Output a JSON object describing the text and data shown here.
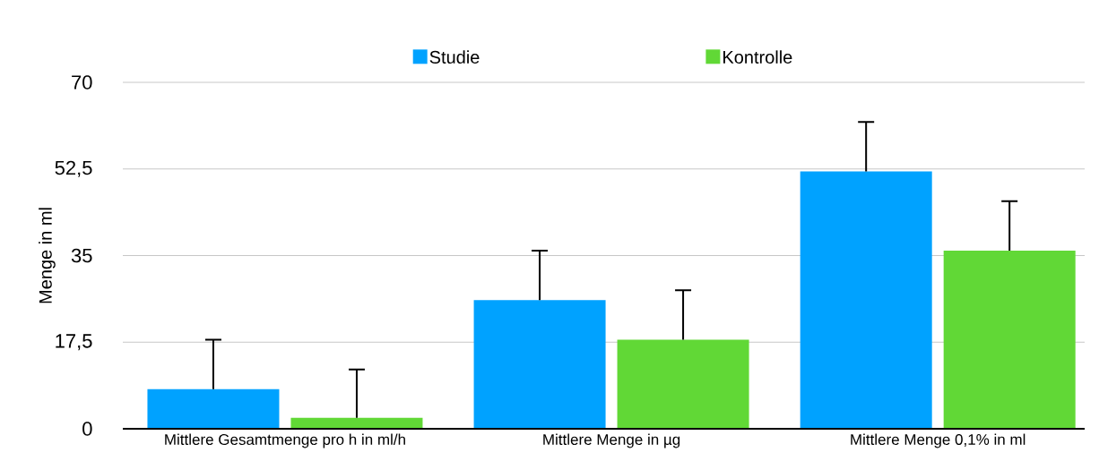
{
  "chart_data": {
    "type": "bar",
    "ylabel": "Menge in ml",
    "categories": [
      "Mittlere Gesamtmenge pro h in ml/h",
      "Mittlere Menge in µg",
      "Mittlere Menge 0,1% in ml"
    ],
    "series": [
      {
        "name": "Studie",
        "color": "#00a2ff",
        "values": [
          8,
          26,
          52
        ],
        "errors": [
          [
            8,
            18
          ],
          [
            26,
            36
          ],
          [
            52,
            62
          ]
        ]
      },
      {
        "name": "Kontrolle",
        "color": "#61d836",
        "values": [
          2.2,
          18,
          36
        ],
        "errors": [
          [
            2.2,
            12
          ],
          [
            18,
            28
          ],
          [
            36,
            46
          ]
        ]
      }
    ],
    "ylim": [
      0,
      70
    ],
    "yticks": [
      0,
      {
        "value": 17.5,
        "label": "17,5"
      },
      35,
      {
        "value": 52.5,
        "label": "52,5"
      },
      70
    ],
    "grid": "y",
    "legend": "top"
  }
}
